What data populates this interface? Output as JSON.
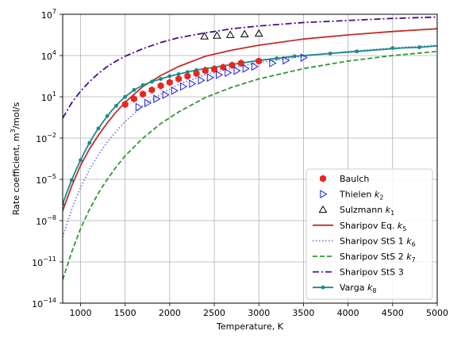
{
  "chart_data": {
    "type": "scatter",
    "xlabel": "Temperature, K",
    "ylabel": "Rate coefficient, m³/mol/s",
    "x_ticks": [
      1000,
      1500,
      2000,
      2500,
      3000,
      3500,
      4000,
      4500,
      5000
    ],
    "y_ticks": [
      {
        "exp": 7,
        "label": "10"
      },
      {
        "exp": 4,
        "label": "10"
      },
      {
        "exp": 1,
        "label": "10"
      },
      {
        "exp": -2,
        "label": "10"
      },
      {
        "exp": -5,
        "label": "10"
      },
      {
        "exp": -8,
        "label": "10"
      },
      {
        "exp": -11,
        "label": "10"
      },
      {
        "exp": -14,
        "label": "10"
      }
    ],
    "y_tick_exponents": [
      "7",
      "4",
      "1",
      "−2",
      "−5",
      "−8",
      "−11",
      "−14"
    ],
    "xlim": [
      800,
      5000
    ],
    "ylim_log10": [
      -14,
      7
    ],
    "y_scale": "log",
    "grid": true,
    "legend_position": "lower-right",
    "legend": [
      {
        "name": "Baulch",
        "sub": ""
      },
      {
        "name": "Thielen ",
        "sub": "k",
        "idx": "2"
      },
      {
        "name": "Sulzmann ",
        "sub": "k",
        "idx": "1"
      },
      {
        "name": "Sharipov Eq. ",
        "sub": "k",
        "idx": "5"
      },
      {
        "name": "Sharipov StS 1 ",
        "sub": "k",
        "idx": "6"
      },
      {
        "name": "Sharipov StS 2 ",
        "sub": "k",
        "idx": "7"
      },
      {
        "name": "Sharipov StS 3",
        "sub": ""
      },
      {
        "name": "Varga ",
        "sub": "k",
        "idx": "8"
      }
    ],
    "colors": {
      "baulch": "#e8271e",
      "thielen": "#1f1fd8",
      "sulzmann": "#000000",
      "sharipov_eq": "#c0302b",
      "sharipov_sts1": "#7b7bd6",
      "sharipov_sts2": "#2e9a2e",
      "sharipov_sts3": "#4b0c87",
      "varga": "#1a8a8a"
    },
    "series": [
      {
        "key": "baulch",
        "kind": "scatter-hexagon",
        "x": [
          1500,
          1600,
          1700,
          1800,
          1900,
          2000,
          2100,
          2200,
          2300,
          2400,
          2500,
          2600,
          2700,
          2800,
          3000
        ],
        "y_log10": [
          0.45,
          0.85,
          1.2,
          1.5,
          1.8,
          2.05,
          2.3,
          2.5,
          2.7,
          2.9,
          3.0,
          3.15,
          3.3,
          3.45,
          3.6
        ]
      },
      {
        "key": "thielen",
        "kind": "scatter-triangle-right",
        "x": [
          1650,
          1750,
          1850,
          1950,
          2050,
          2150,
          2250,
          2350,
          2450,
          2550,
          2650,
          2750,
          2850,
          2950,
          3150,
          3300,
          3500
        ],
        "y_log10": [
          0.25,
          0.55,
          0.85,
          1.15,
          1.45,
          1.75,
          1.95,
          2.2,
          2.4,
          2.6,
          2.75,
          2.9,
          3.05,
          3.2,
          3.45,
          3.65,
          3.85
        ]
      },
      {
        "key": "sulzmann",
        "kind": "scatter-triangle-up",
        "x": [
          2390,
          2530,
          2680,
          2840,
          3000
        ],
        "y_log10": [
          5.4,
          5.45,
          5.5,
          5.55,
          5.6
        ]
      },
      {
        "key": "sharipov_eq",
        "kind": "line-solid",
        "x": [
          800,
          900,
          1000,
          1100,
          1200,
          1300,
          1400,
          1500,
          1700,
          1900,
          2100,
          2400,
          2700,
          3000,
          3500,
          4000,
          4500,
          5000
        ],
        "y_log10": [
          -7.3,
          -5.5,
          -4.0,
          -2.8,
          -1.8,
          -0.9,
          -0.1,
          0.6,
          1.75,
          2.55,
          3.2,
          3.95,
          4.4,
          4.75,
          5.2,
          5.5,
          5.75,
          5.95
        ]
      },
      {
        "key": "sharipov_sts1",
        "kind": "line-dotted",
        "x": [
          800,
          900,
          1000,
          1100,
          1200,
          1300,
          1400,
          1500,
          1700,
          1900,
          2100,
          2400,
          2700,
          3000,
          3500,
          4000,
          4500,
          5000
        ],
        "y_log10": [
          -9.2,
          -7.2,
          -5.6,
          -4.3,
          -3.2,
          -2.3,
          -1.5,
          -0.8,
          0.35,
          1.2,
          1.9,
          2.6,
          3.1,
          3.5,
          3.95,
          4.3,
          4.55,
          4.75
        ]
      },
      {
        "key": "sharipov_sts2",
        "kind": "line-dashed",
        "x": [
          800,
          900,
          1000,
          1100,
          1200,
          1300,
          1400,
          1500,
          1700,
          1900,
          2100,
          2400,
          2700,
          3000,
          3500,
          4000,
          4500,
          5000
        ],
        "y_log10": [
          -12.3,
          -10.3,
          -8.6,
          -7.2,
          -6.0,
          -5.0,
          -4.1,
          -3.3,
          -2.0,
          -0.95,
          -0.1,
          0.95,
          1.7,
          2.3,
          3.05,
          3.6,
          4.0,
          4.3
        ]
      },
      {
        "key": "sharipov_sts3",
        "kind": "line-dashdot",
        "x": [
          800,
          900,
          1000,
          1100,
          1200,
          1300,
          1400,
          1500,
          1700,
          1900,
          2100,
          2400,
          2700,
          3000,
          3500,
          4000,
          4500,
          5000
        ],
        "y_log10": [
          -0.55,
          0.55,
          1.4,
          2.1,
          2.7,
          3.2,
          3.6,
          3.95,
          4.5,
          4.95,
          5.3,
          5.65,
          5.95,
          6.15,
          6.4,
          6.55,
          6.7,
          6.8
        ]
      },
      {
        "key": "varga",
        "kind": "line-markers",
        "x": [
          800,
          850,
          900,
          950,
          1000,
          1050,
          1100,
          1150,
          1200,
          1250,
          1300,
          1350,
          1400,
          1450,
          1500,
          1600,
          1700,
          1800,
          1900,
          2000,
          2100,
          2200,
          2300,
          2400,
          2500,
          2600,
          2700,
          2800,
          2900,
          3000,
          3200,
          3400,
          3600,
          3800,
          4000,
          4200,
          4400,
          4600,
          4800,
          5000
        ],
        "y_log10": [
          -6.8,
          -5.9,
          -5.05,
          -4.3,
          -3.6,
          -2.95,
          -2.35,
          -1.8,
          -1.3,
          -0.85,
          -0.4,
          -0.0,
          0.35,
          0.7,
          1.0,
          1.5,
          1.85,
          2.1,
          2.3,
          2.5,
          2.65,
          2.8,
          2.95,
          3.05,
          3.15,
          3.25,
          3.35,
          3.45,
          3.55,
          3.65,
          3.8,
          3.95,
          4.05,
          4.15,
          4.25,
          4.35,
          4.45,
          4.55,
          4.6,
          4.7
        ],
        "marker_x": [
          800,
          900,
          1000,
          1100,
          1200,
          1300,
          1400,
          1500,
          1600,
          1700,
          1800,
          1900,
          2000,
          2100,
          2200,
          2300,
          2400,
          2500,
          2600,
          2700,
          2800,
          3000,
          3200,
          3400,
          3800,
          4100,
          4500,
          4800
        ],
        "marker_y_log10": [
          -6.8,
          -5.05,
          -3.6,
          -2.35,
          -1.3,
          -0.4,
          0.35,
          1.0,
          1.5,
          1.85,
          2.1,
          2.3,
          2.5,
          2.65,
          2.8,
          2.95,
          3.05,
          3.15,
          3.25,
          3.35,
          3.45,
          3.65,
          3.8,
          3.95,
          4.15,
          4.3,
          4.55,
          4.6
        ]
      }
    ]
  }
}
